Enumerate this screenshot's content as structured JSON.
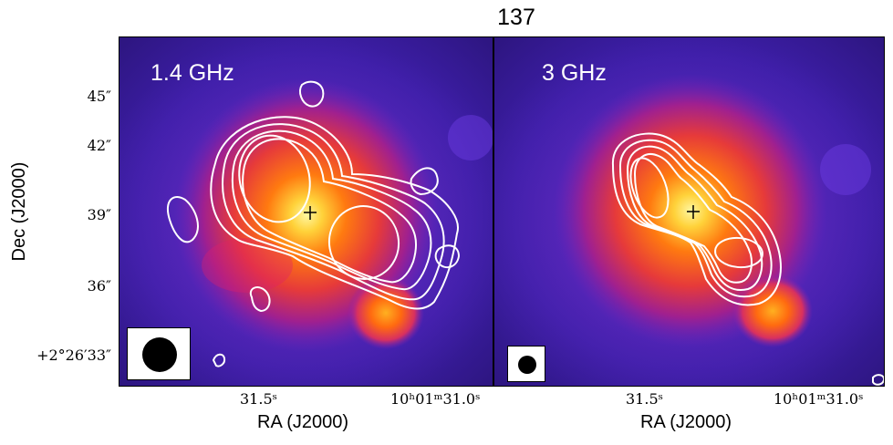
{
  "figure": {
    "title": "137",
    "y_axis_label": "Dec (J2000)",
    "y_ticks": [
      "45″",
      "42″",
      "39″",
      "36″",
      "+2°26′33″"
    ],
    "panels": [
      {
        "label": "1.4 GHz",
        "x_axis_label": "RA (J2000)",
        "x_ticks": [
          "31.5ˢ",
          "10ʰ01ᵐ31.0ˢ"
        ]
      },
      {
        "label": "3 GHz",
        "x_axis_label": "RA (J2000)",
        "x_ticks": [
          "31.5ˢ",
          "10ʰ01ᵐ31.0ˢ"
        ]
      }
    ]
  },
  "colors": {
    "background_colormap": [
      "#2a1075",
      "#4b22b8",
      "#8a1fc8",
      "#d8306e",
      "#ff5a14",
      "#ffa414",
      "#fff27a"
    ],
    "contours": "#ffffff"
  }
}
